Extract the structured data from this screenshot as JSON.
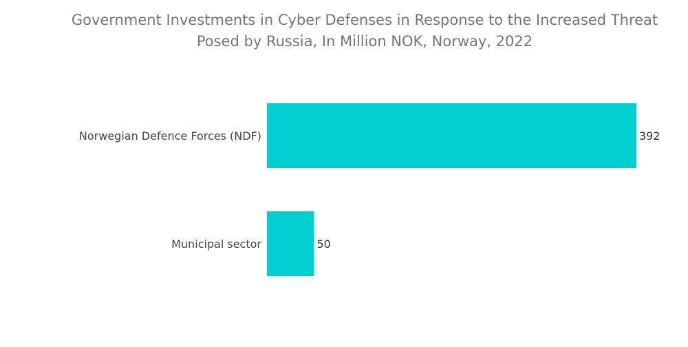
{
  "chart_data": {
    "type": "bar",
    "orientation": "horizontal",
    "title_lines": [
      "Government Investments in Cyber Defenses in Response to the Increased Threat",
      "Posed by Russia, In Million NOK, Norway, 2022"
    ],
    "categories": [
      "Norwegian Defence Forces (NDF)",
      "Municipal sector"
    ],
    "values": [
      392,
      50
    ],
    "xlim": [
      0,
      392
    ],
    "grid": false,
    "legend": "none",
    "bar_color": "#00CED1"
  }
}
